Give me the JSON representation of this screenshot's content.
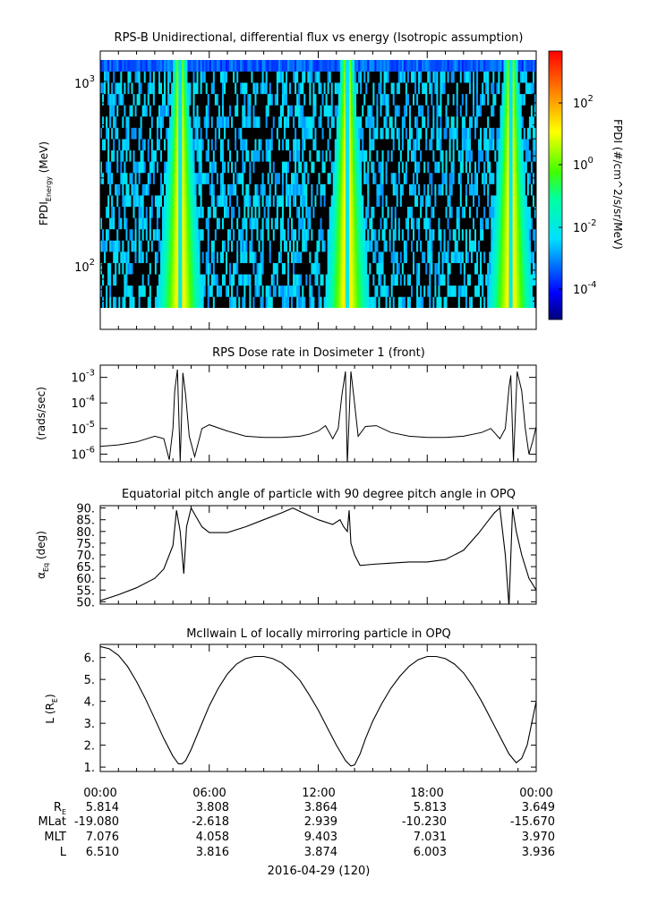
{
  "panels": {
    "spectrogram": {
      "title": "RPS-B  Unidirectional, differential flux vs energy (Isotropic assumption)",
      "ylabel_main": "FPDI",
      "ylabel_sub": "Energy",
      "ylabel_unit": " (MeV)",
      "yticks": [
        {
          "base": "10",
          "exp": "3"
        },
        {
          "base": "10",
          "exp": "2"
        }
      ],
      "colorbar_label": "FPDI (#/cm^2/s/sr/MeV)",
      "colorbar_ticks": [
        {
          "base": "10",
          "exp": "2"
        },
        {
          "base": "10",
          "exp": "0"
        },
        {
          "base": "10",
          "exp": "-2"
        },
        {
          "base": "10",
          "exp": "-4"
        }
      ]
    },
    "dose": {
      "title": "RPS  Dose rate in Dosimeter 1 (front)",
      "ylabel": "(rads/sec)",
      "yticks": [
        {
          "base": "10",
          "exp": "-3"
        },
        {
          "base": "10",
          "exp": "-4"
        },
        {
          "base": "10",
          "exp": "-5"
        },
        {
          "base": "10",
          "exp": "-6"
        }
      ]
    },
    "pitch": {
      "title": "Equatorial pitch angle of particle with 90 degree pitch angle in OPQ",
      "ylabel_main": "α",
      "ylabel_sub": "Eq",
      "ylabel_unit": " (deg)",
      "yticks": [
        "90.",
        "85.",
        "80.",
        "75.",
        "70.",
        "65.",
        "60.",
        "55.",
        "50."
      ]
    },
    "lshell": {
      "title": "McIlwain L of locally mirroring particle in OPQ",
      "ylabel_main": "L (R",
      "ylabel_sub": "E",
      "ylabel_close": ")",
      "yticks": [
        "6.",
        "5.",
        "4.",
        "3.",
        "2.",
        "1."
      ]
    }
  },
  "xaxis": {
    "time_labels": [
      "00:00",
      "06:00",
      "12:00",
      "18:00",
      "00:00"
    ],
    "rows": [
      {
        "name_main": "R",
        "name_sub": "E",
        "values": [
          "5.814",
          "3.808",
          "3.864",
          "5.813",
          "3.649"
        ]
      },
      {
        "name_main": "MLat",
        "name_sub": "",
        "values": [
          "-19.080",
          "-2.618",
          "2.939",
          "-10.230",
          "-15.670"
        ]
      },
      {
        "name_main": "MLT",
        "name_sub": "",
        "values": [
          "7.076",
          "4.058",
          "9.403",
          "7.031",
          "3.970"
        ]
      },
      {
        "name_main": "L",
        "name_sub": "",
        "values": [
          "6.510",
          "3.816",
          "3.874",
          "6.003",
          "3.936"
        ]
      }
    ],
    "date_label": "2016-04-29 (120)"
  },
  "chart_data": [
    {
      "type": "heatmap",
      "title": "RPS-B  Unidirectional, differential flux vs energy (Isotropic assumption)",
      "xlabel": "",
      "ylabel": "FPDI Energy (MeV)",
      "x_unit": "hours since 2016-04-29 00:00",
      "xlim": [
        0,
        24
      ],
      "ylim": [
        55,
        1400
      ],
      "yscale": "log",
      "colorbar": {
        "label": "FPDI (#/cm^2/s/sr/MeV)",
        "scale": "log",
        "range": [
          1e-05,
          3000
        ],
        "colormap": "rainbow"
      },
      "features": [
        {
          "description": "belt crossing",
          "center_hours": 4.4
        },
        {
          "description": "belt crossing",
          "center_hours": 13.6
        },
        {
          "description": "belt crossing",
          "center_hours": 22.6
        }
      ]
    },
    {
      "type": "line",
      "title": "RPS  Dose rate in Dosimeter 1 (front)",
      "ylabel": "(rads/sec)",
      "yscale": "log",
      "ylim": [
        5e-07,
        0.003
      ],
      "x_unit": "hours since 2016-04-29 00:00",
      "x": [
        0,
        1,
        2,
        3,
        3.5,
        3.8,
        4.0,
        4.1,
        4.25,
        4.4,
        4.55,
        4.7,
        4.9,
        5.2,
        5.6,
        6.0,
        7,
        8,
        9,
        10,
        11,
        11.5,
        12,
        12.4,
        12.8,
        13.1,
        13.3,
        13.5,
        13.6,
        13.8,
        13.95,
        14.2,
        14.6,
        15.2,
        16,
        17,
        18,
        19,
        20,
        21,
        21.5,
        22.0,
        22.3,
        22.5,
        22.6,
        22.75,
        22.95,
        23.2,
        23.4,
        23.6,
        23.8,
        24
      ],
      "y": [
        2e-06,
        2.3e-06,
        3e-06,
        5e-06,
        4e-06,
        6e-07,
        1e-05,
        0.0003,
        0.002,
        5e-07,
        0.0015,
        0.0002,
        5e-06,
        8e-07,
        1e-05,
        1.4e-05,
        8e-06,
        5e-06,
        4.5e-06,
        4.5e-06,
        5e-06,
        6e-06,
        8e-06,
        1.3e-05,
        4e-06,
        1e-05,
        0.0002,
        0.0017,
        4e-07,
        0.0017,
        0.0002,
        5e-06,
        1.2e-05,
        1.3e-05,
        7e-06,
        5e-06,
        4.5e-06,
        4.5e-06,
        5e-06,
        7e-06,
        1e-05,
        4e-06,
        1e-05,
        0.0004,
        0.0012,
        5e-07,
        0.0017,
        0.0003,
        1e-05,
        1e-06,
        3e-06,
        1.2e-05
      ]
    },
    {
      "type": "line",
      "title": "Equatorial pitch angle of particle with 90 degree pitch angle in OPQ",
      "ylabel": "αEq (deg)",
      "ylim": [
        49,
        91
      ],
      "x_unit": "hours since 2016-04-29 00:00",
      "x": [
        0,
        1,
        2,
        3,
        3.5,
        4.0,
        4.2,
        4.4,
        4.6,
        4.75,
        5.0,
        5.3,
        5.6,
        6.0,
        7,
        8,
        9,
        10,
        10.6,
        11,
        12,
        12.8,
        13.2,
        13.4,
        13.6,
        13.7,
        13.8,
        14.0,
        14.3,
        15,
        16,
        17,
        18,
        19,
        20,
        20.8,
        21.3,
        21.7,
        22.0,
        22.3,
        22.5,
        22.7,
        22.9,
        23.2,
        23.6,
        24
      ],
      "y": [
        50.5,
        53,
        56,
        60,
        64,
        74,
        89,
        80,
        62,
        82,
        90,
        86,
        82,
        79.5,
        79.5,
        82,
        85,
        88,
        90,
        88.5,
        85,
        83,
        85,
        82,
        80,
        89,
        75,
        70,
        65.5,
        66,
        66.5,
        67,
        67,
        68,
        72,
        79,
        84,
        88,
        90,
        70,
        48,
        90,
        80,
        70,
        60,
        55
      ]
    },
    {
      "type": "line",
      "title": "McIlwain L of locally mirroring particle in OPQ",
      "ylabel": "L (RE)",
      "ylim": [
        0.8,
        6.6
      ],
      "x_unit": "hours since 2016-04-29 00:00",
      "x": [
        0,
        0.5,
        1,
        1.5,
        2,
        2.5,
        3,
        3.5,
        4,
        4.3,
        4.5,
        4.7,
        5,
        5.5,
        6,
        6.5,
        7,
        7.5,
        8,
        8.5,
        9,
        9.5,
        10,
        10.5,
        11,
        11.5,
        12,
        12.5,
        13,
        13.5,
        13.8,
        14,
        14.3,
        14.6,
        15,
        15.5,
        16,
        16.5,
        17,
        17.5,
        18,
        18.5,
        19,
        19.5,
        20,
        20.5,
        21,
        21.5,
        22,
        22.5,
        22.9,
        23.2,
        23.5,
        24
      ],
      "y": [
        6.5,
        6.4,
        6.1,
        5.6,
        4.9,
        4.1,
        3.2,
        2.3,
        1.5,
        1.15,
        1.15,
        1.3,
        1.8,
        2.8,
        3.8,
        4.6,
        5.25,
        5.7,
        5.95,
        6.05,
        6.05,
        5.95,
        5.75,
        5.4,
        4.95,
        4.3,
        3.6,
        2.8,
        2.0,
        1.3,
        1.05,
        1.1,
        1.6,
        2.3,
        3.1,
        3.9,
        4.6,
        5.15,
        5.6,
        5.9,
        6.05,
        6.05,
        5.95,
        5.7,
        5.3,
        4.7,
        4.0,
        3.2,
        2.4,
        1.6,
        1.2,
        1.4,
        2.0,
        4.0
      ]
    }
  ]
}
